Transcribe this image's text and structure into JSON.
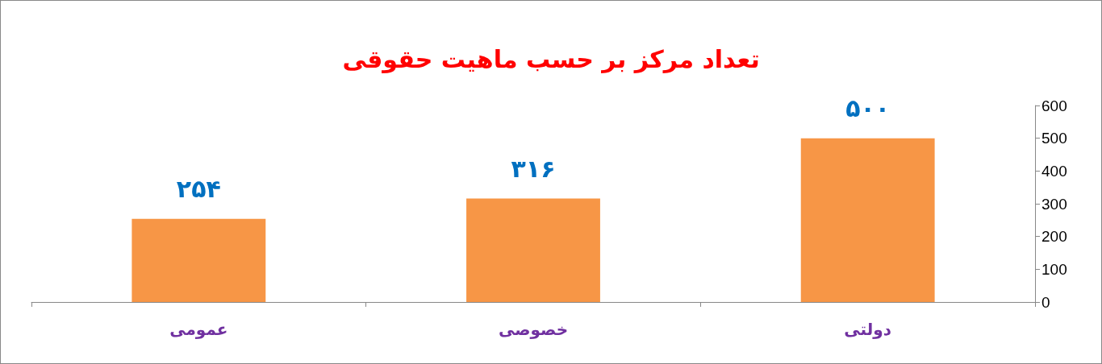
{
  "chart_data": {
    "type": "bar",
    "title": "تعداد مرکز بر حسب ماهیت حقوقی",
    "categories": [
      "عمومی",
      "خصوصی",
      "دولتی"
    ],
    "values": [
      254,
      316,
      500
    ],
    "color": "#f79646",
    "value_labels": [
      "۲۵۴",
      "۳۱۶",
      "۵۰۰"
    ],
    "ylim": [
      0,
      600
    ],
    "yticks": [
      0,
      100,
      200,
      300,
      400,
      500,
      600
    ]
  }
}
